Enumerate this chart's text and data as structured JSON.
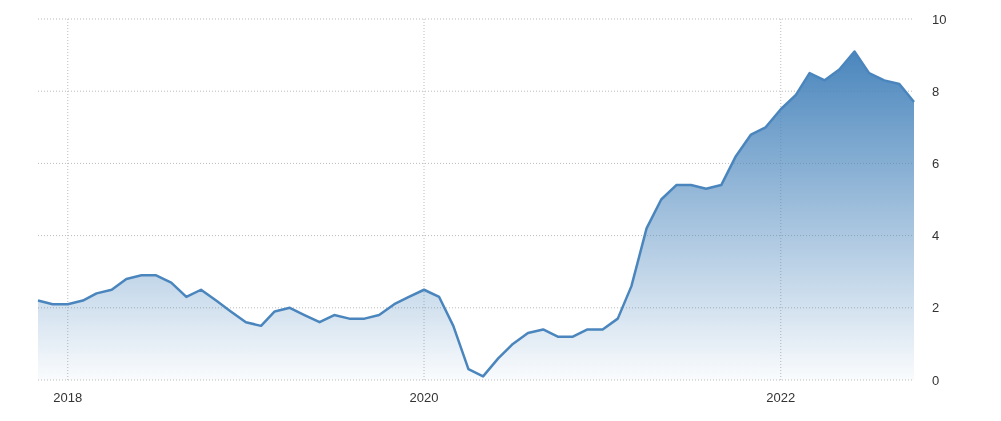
{
  "chart_data": {
    "type": "area",
    "x": [
      "2017-11",
      "2017-12",
      "2018-01",
      "2018-02",
      "2018-03",
      "2018-04",
      "2018-05",
      "2018-06",
      "2018-07",
      "2018-08",
      "2018-09",
      "2018-10",
      "2018-11",
      "2018-12",
      "2019-01",
      "2019-02",
      "2019-03",
      "2019-04",
      "2019-05",
      "2019-06",
      "2019-07",
      "2019-08",
      "2019-09",
      "2019-10",
      "2019-11",
      "2019-12",
      "2020-01",
      "2020-02",
      "2020-03",
      "2020-04",
      "2020-05",
      "2020-06",
      "2020-07",
      "2020-08",
      "2020-09",
      "2020-10",
      "2020-11",
      "2020-12",
      "2021-01",
      "2021-02",
      "2021-03",
      "2021-04",
      "2021-05",
      "2021-06",
      "2021-07",
      "2021-08",
      "2021-09",
      "2021-10",
      "2021-11",
      "2021-12",
      "2022-01",
      "2022-02",
      "2022-03",
      "2022-04",
      "2022-05",
      "2022-06",
      "2022-07",
      "2022-08",
      "2022-09",
      "2022-10"
    ],
    "series": [
      {
        "color": "#4a86bd",
        "values": [
          2.2,
          2.1,
          2.1,
          2.2,
          2.4,
          2.5,
          2.8,
          2.9,
          2.9,
          2.7,
          2.3,
          2.5,
          2.2,
          1.9,
          1.6,
          1.5,
          1.9,
          2.0,
          1.8,
          1.6,
          1.8,
          1.7,
          1.7,
          1.8,
          2.1,
          2.3,
          2.5,
          2.3,
          1.5,
          0.3,
          0.1,
          0.6,
          1.0,
          1.3,
          1.4,
          1.2,
          1.2,
          1.4,
          1.4,
          1.7,
          2.6,
          4.2,
          5.0,
          5.4,
          5.4,
          5.3,
          5.4,
          6.2,
          6.8,
          7.0,
          7.5,
          7.9,
          8.5,
          8.3,
          8.6,
          9.1,
          8.5,
          8.3,
          8.2,
          7.7
        ]
      }
    ],
    "xlim": [
      "2017-11",
      "2022-10"
    ],
    "xticks": [
      "2018",
      "2020",
      "2022"
    ],
    "ylim": [
      0,
      10
    ],
    "yticks": [
      0,
      2,
      4,
      6,
      8,
      10
    ],
    "grid": true
  }
}
